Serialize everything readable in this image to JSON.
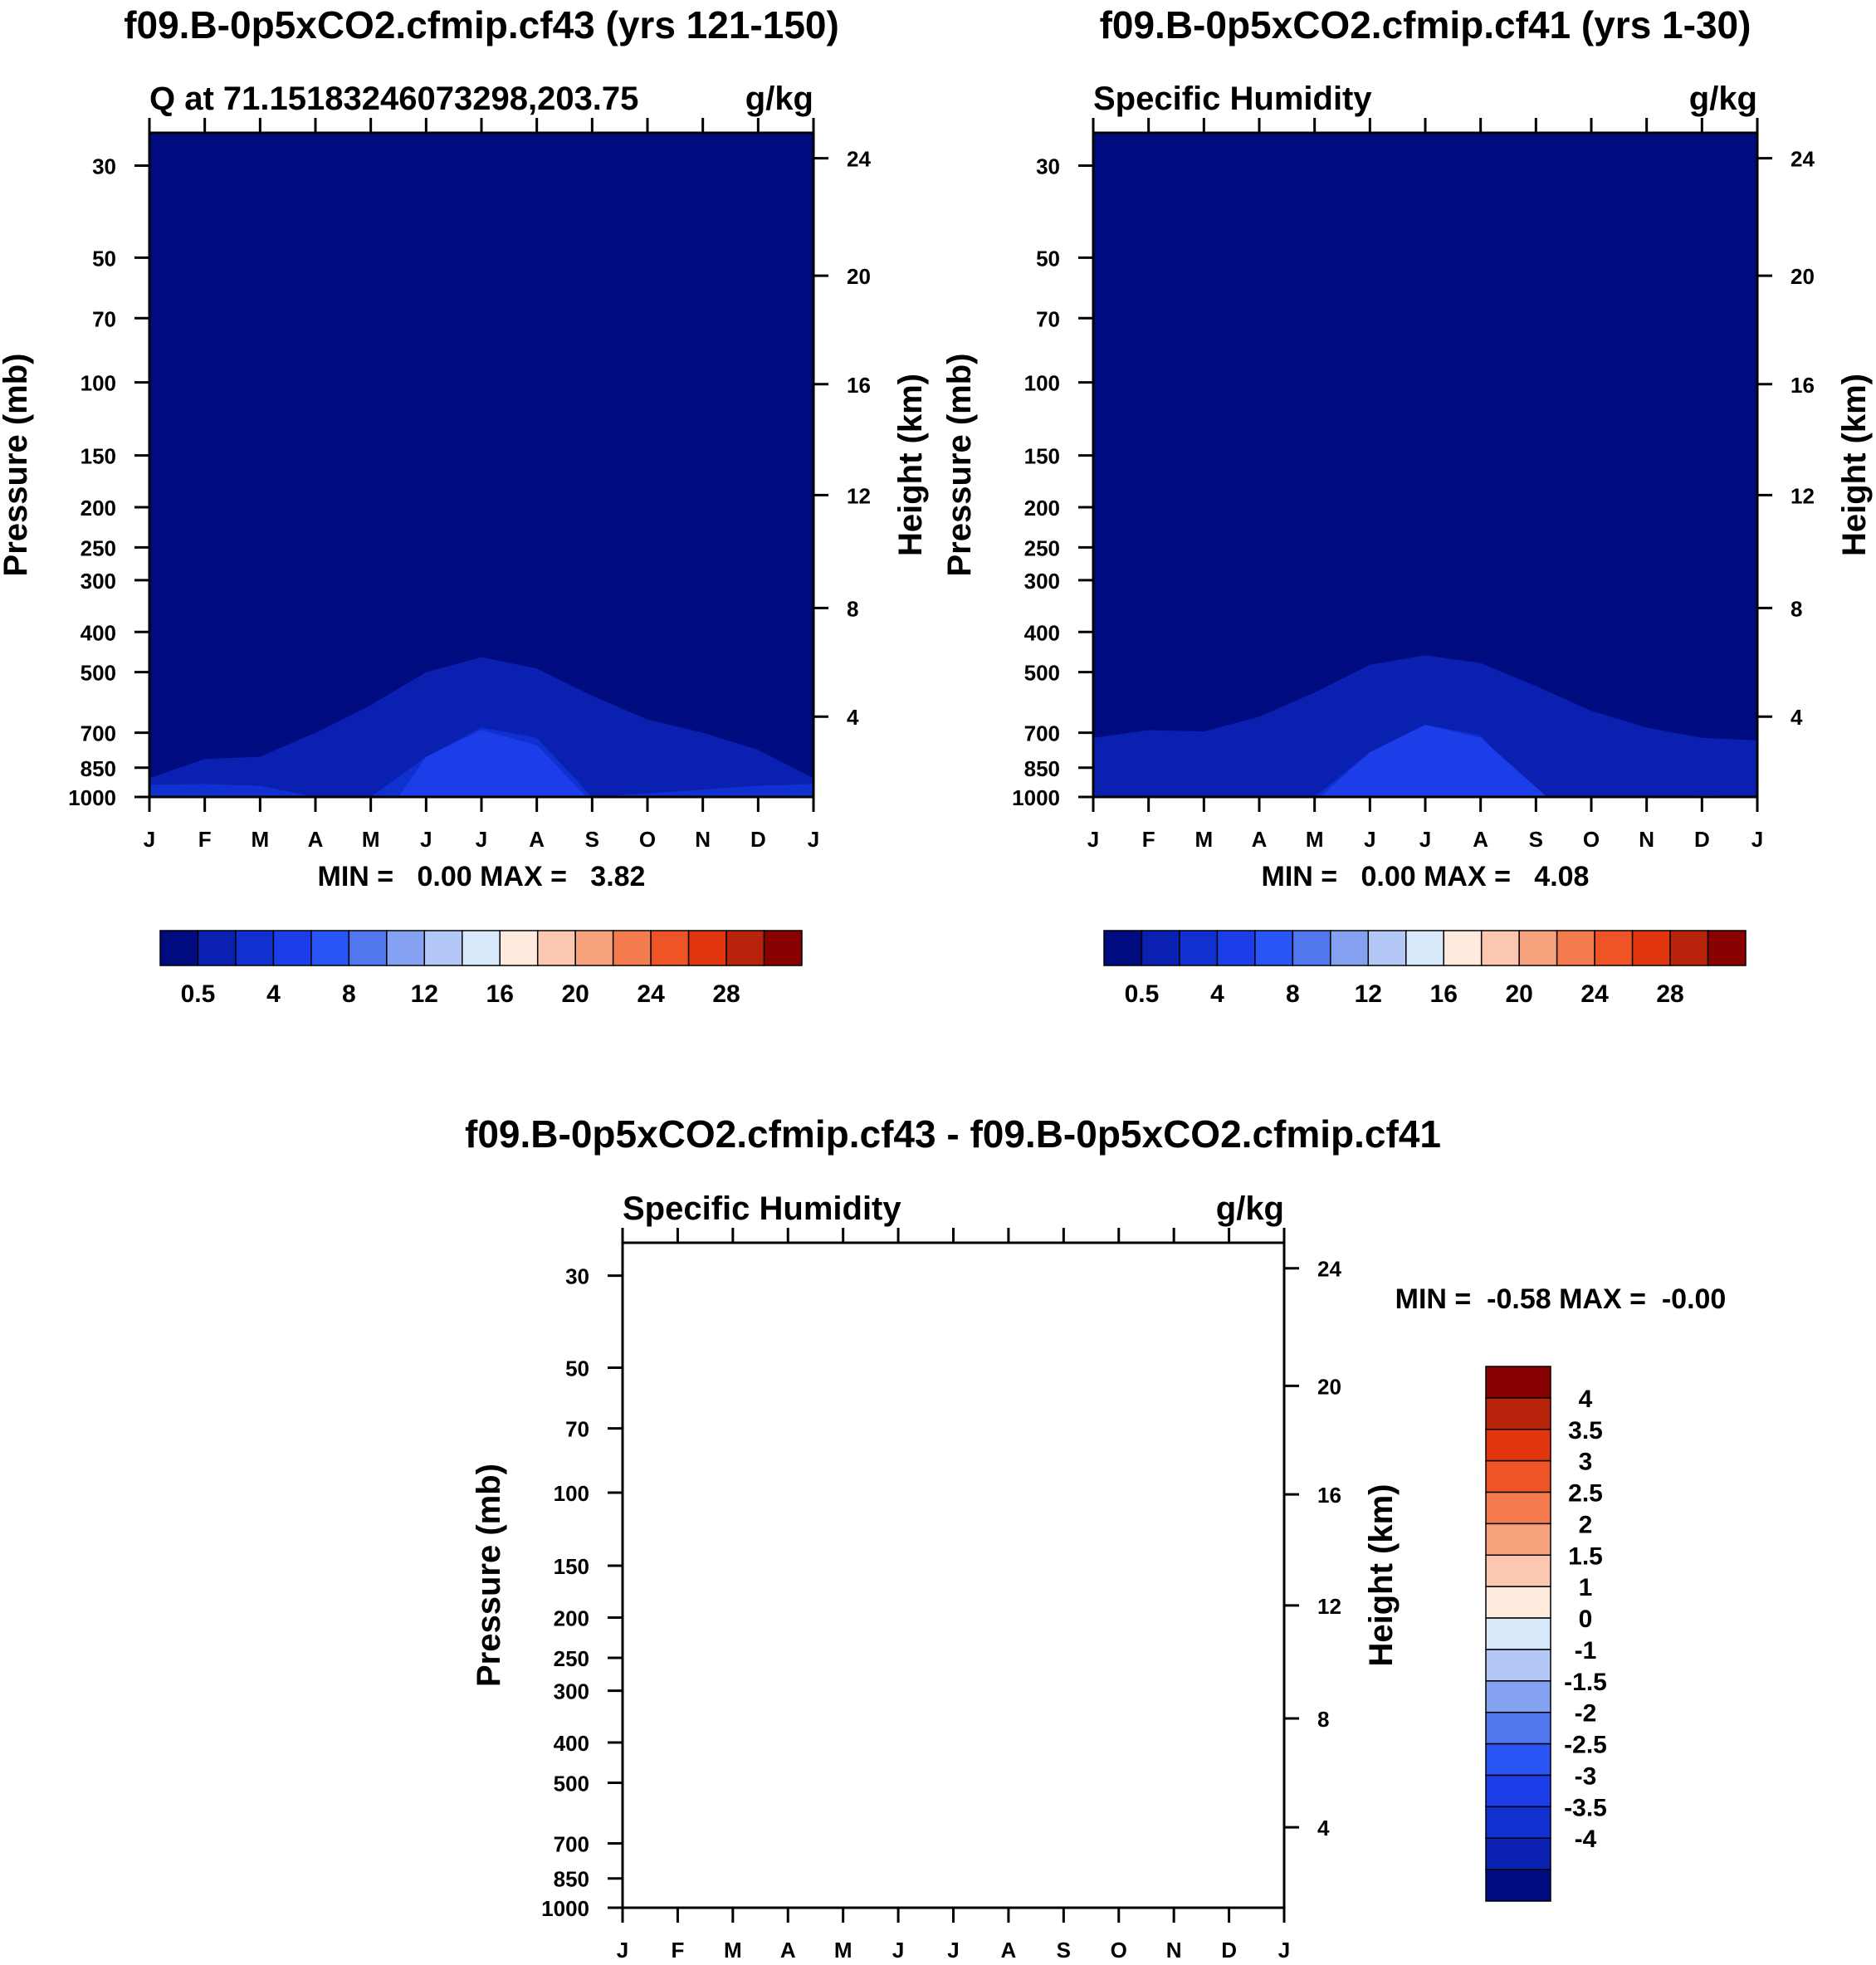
{
  "chart_data": [
    {
      "type": "heatmap",
      "panel": "top-left",
      "title": "f09.B-0p5xCO2.cfmip.cf43 (yrs 121-150)",
      "subtitle_left": "Q at 71.15183246073298,203.75",
      "subtitle_right": "g/kg",
      "ylabel": "Pressure (mb)",
      "ylabel_right": "Height (km)",
      "x_ticks": [
        "J",
        "F",
        "M",
        "A",
        "M",
        "J",
        "J",
        "A",
        "S",
        "O",
        "N",
        "D",
        "J"
      ],
      "y_ticks": [
        30,
        50,
        70,
        100,
        150,
        200,
        250,
        300,
        400,
        500,
        700,
        850,
        1000
      ],
      "y_ticks_right": [
        24,
        20,
        16,
        12,
        8,
        4
      ],
      "y_scale": "log",
      "ylim": [
        1000,
        25
      ],
      "minmax_text": "MIN =   0.00 MAX =   3.82",
      "colorbar_labels": [
        "0.5",
        "4",
        "8",
        "12",
        "16",
        "20",
        "24",
        "28"
      ],
      "colorbar_orientation": "horizontal",
      "contours": [
        {
          "level": 0.5,
          "color": "#0a20b0",
          "months": [
            0,
            1,
            2,
            3,
            4,
            5,
            6,
            7,
            8,
            9,
            10,
            11,
            12
          ],
          "top_p": [
            900,
            810,
            800,
            700,
            600,
            500,
            460,
            490,
            570,
            650,
            700,
            770,
            900
          ]
        },
        {
          "level": 2,
          "color": "#1030d0",
          "months": [
            0,
            1,
            2,
            3,
            4,
            5,
            6,
            7,
            8,
            9,
            10,
            11,
            12
          ],
          "top_p": [
            935,
            930,
            940,
            1000,
            1000,
            800,
            680,
            720,
            1000,
            980,
            960,
            940,
            930
          ]
        },
        {
          "level": 3,
          "color": "#1b3ee8",
          "months": [
            4.5,
            5,
            6,
            7,
            7.9
          ],
          "top_p": [
            1000,
            800,
            690,
            750,
            1000
          ]
        }
      ]
    },
    {
      "type": "heatmap",
      "panel": "top-right",
      "title": "f09.B-0p5xCO2.cfmip.cf41 (yrs 1-30)",
      "subtitle_left": "Specific Humidity",
      "subtitle_right": "g/kg",
      "ylabel": "Pressure (mb)",
      "ylabel_right": "Height (km)",
      "x_ticks": [
        "J",
        "F",
        "M",
        "A",
        "M",
        "J",
        "J",
        "A",
        "S",
        "O",
        "N",
        "D",
        "J"
      ],
      "y_ticks": [
        30,
        50,
        70,
        100,
        150,
        200,
        250,
        300,
        400,
        500,
        700,
        850,
        1000
      ],
      "y_ticks_right": [
        24,
        20,
        16,
        12,
        8,
        4
      ],
      "y_scale": "log",
      "ylim": [
        1000,
        25
      ],
      "minmax_text": "MIN =   0.00 MAX =   4.08",
      "colorbar_labels": [
        "0.5",
        "4",
        "8",
        "12",
        "16",
        "20",
        "24",
        "28"
      ],
      "colorbar_orientation": "horizontal",
      "contours": [
        {
          "level": 0.5,
          "color": "#0a20b0",
          "months": [
            0,
            1,
            2,
            3,
            4,
            5,
            6,
            7,
            8,
            9,
            10,
            11,
            12
          ],
          "top_p": [
            720,
            690,
            695,
            640,
            560,
            480,
            455,
            475,
            540,
            620,
            680,
            720,
            730
          ]
        },
        {
          "level": 2,
          "color": "#1030d0",
          "months": [
            0,
            1,
            2,
            3,
            4,
            5,
            6,
            7,
            8,
            9,
            10,
            11,
            12
          ],
          "top_p": [
            990,
            1000,
            1000,
            1000,
            1000,
            780,
            670,
            710,
            1000,
            1000,
            1000,
            990,
            995
          ]
        },
        {
          "level": 3,
          "color": "#1b3ee8",
          "months": [
            4.1,
            5,
            6,
            7,
            8.2
          ],
          "top_p": [
            1000,
            780,
            670,
            720,
            1000
          ]
        }
      ]
    },
    {
      "type": "heatmap",
      "panel": "bottom",
      "title": "f09.B-0p5xCO2.cfmip.cf43 - f09.B-0p5xCO2.cfmip.cf41",
      "subtitle_left": "Specific Humidity",
      "subtitle_right": "g/kg",
      "ylabel": "Pressure (mb)",
      "ylabel_right": "Height (km)",
      "x_ticks": [
        "J",
        "F",
        "M",
        "A",
        "M",
        "J",
        "J",
        "A",
        "S",
        "O",
        "N",
        "D",
        "J"
      ],
      "y_ticks": [
        30,
        50,
        70,
        100,
        150,
        200,
        250,
        300,
        400,
        500,
        700,
        850,
        1000
      ],
      "y_ticks_right": [
        24,
        20,
        16,
        12,
        8,
        4
      ],
      "y_scale": "log",
      "ylim": [
        1000,
        25
      ],
      "minmax_text": "MIN =  -0.58 MAX =  -0.00",
      "colorbar_labels": [
        "4",
        "3.5",
        "3",
        "2.5",
        "2",
        "1.5",
        "1",
        "0",
        "-1",
        "-1.5",
        "-2",
        "-2.5",
        "-3",
        "-3.5",
        "-4"
      ],
      "colorbar_orientation": "vertical",
      "contours": []
    }
  ],
  "colors": {
    "seq_palette": [
      "#000b80",
      "#0a20b0",
      "#1030d0",
      "#1b3ee8",
      "#2a55f5",
      "#5077ee",
      "#85a2f2",
      "#b4c8f8",
      "#d8e8fb",
      "#fdeadc",
      "#fbc7b0",
      "#f8a37e",
      "#f47b4e",
      "#ef5427",
      "#e0350d",
      "#b8240b",
      "#880000"
    ],
    "diff_palette": [
      "#880000",
      "#b8240b",
      "#e0350d",
      "#ef5427",
      "#f47b4e",
      "#f8a37e",
      "#fbc7b0",
      "#fdeadc",
      "#d8e8fb",
      "#b4c8f8",
      "#85a2f2",
      "#5077ee",
      "#2a55f5",
      "#1b3ee8",
      "#1030d0",
      "#0a20b0",
      "#000b80"
    ]
  }
}
